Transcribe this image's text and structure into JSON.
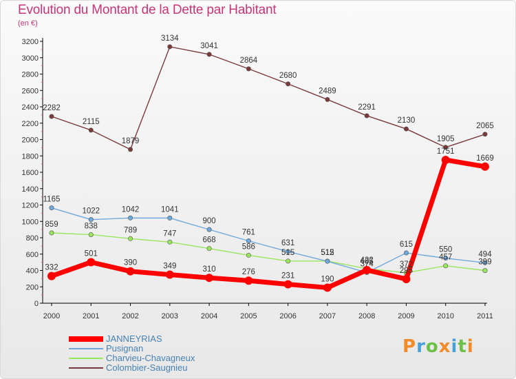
{
  "title": "Evolution du Montant de la Dette par Habitant",
  "subtitle": "(en €)",
  "logo_text": "Proxiti",
  "chart_data": {
    "type": "line",
    "title": "Evolution du Montant de la Dette par Habitant",
    "subtitle": "(en €)",
    "categories": [
      "2000",
      "2001",
      "2002",
      "2003",
      "2004",
      "2005",
      "2006",
      "2007",
      "2008",
      "2009",
      "2010",
      "2011"
    ],
    "ylim": [
      0,
      3200
    ],
    "yticks": [
      0,
      200,
      400,
      600,
      800,
      1000,
      1200,
      1400,
      1600,
      1800,
      2000,
      2200,
      2400,
      2600,
      2800,
      3000,
      3200
    ],
    "grid": false,
    "legend_position": "bottom-left",
    "series": [
      {
        "name": "JANNEYRIAS",
        "color": "#ff0000",
        "values": [
          332,
          501,
          390,
          349,
          310,
          276,
          231,
          190,
          405,
          295,
          1751,
          1669
        ],
        "labels": [
          "332",
          "501",
          "390",
          "349",
          "310",
          "276",
          "231",
          "190",
          "405",
          "295",
          "1751",
          "1669"
        ]
      },
      {
        "name": "Pusignan",
        "color": "#6fa8dc",
        "values": [
          1165,
          1022,
          1042,
          1041,
          900,
          761,
          631,
          512,
          374,
          615,
          550,
          494
        ],
        "labels": [
          "1165",
          "1022",
          "1042",
          "1041",
          "900",
          "761",
          "631",
          "512",
          "374",
          "615",
          "550",
          "494"
        ]
      },
      {
        "name": "Charvieu-Chavagneux",
        "color": "#99e65c",
        "values": [
          859,
          838,
          789,
          747,
          668,
          586,
          515,
          515,
          422,
          372,
          457,
          399
        ],
        "labels": [
          "859",
          "838",
          "789",
          "747",
          "668",
          "586",
          "515",
          "515",
          "422",
          "372",
          "457",
          "399"
        ]
      },
      {
        "name": "Colombier-Saugnieu",
        "color": "#7a3a3a",
        "values": [
          2282,
          2115,
          1879,
          3134,
          3041,
          2864,
          2680,
          2489,
          2291,
          2130,
          1905,
          2065
        ],
        "labels": [
          "2282",
          "2115",
          "1879",
          "3134",
          "3041",
          "2864",
          "2680",
          "2489",
          "2291",
          "2130",
          "1905",
          "2065"
        ]
      }
    ]
  }
}
